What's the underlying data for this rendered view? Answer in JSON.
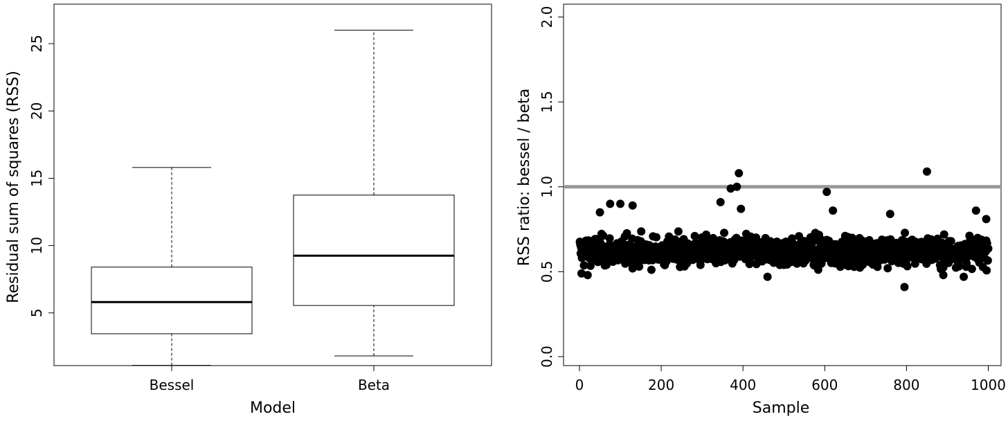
{
  "chart_data": [
    {
      "type": "boxplot",
      "title": "",
      "xlabel": "Model",
      "ylabel": "Residual sum of squares (RSS)",
      "categories": [
        "Bessel",
        "Beta"
      ],
      "yticks": [
        5,
        10,
        15,
        20,
        25
      ],
      "ylim": [
        1.0,
        26.0
      ],
      "grid": false,
      "boxes": [
        {
          "name": "Bessel",
          "whisker_low": 1.1,
          "q1": 3.45,
          "median": 5.8,
          "q3": 8.4,
          "whisker_high": 15.8
        },
        {
          "name": "Beta",
          "whisker_low": 1.8,
          "q1": 5.55,
          "median": 9.25,
          "q3": 13.75,
          "whisker_high": 26.0
        }
      ]
    },
    {
      "type": "scatter",
      "title": "",
      "xlabel": "Sample",
      "ylabel": "RSS ratio:  bessel / beta",
      "xticks": [
        0,
        200,
        400,
        600,
        800,
        1000
      ],
      "yticks": [
        0.0,
        0.5,
        1.0,
        1.5,
        2.0
      ],
      "ytick_labels": [
        "0.0",
        "0.5",
        "1.0",
        "1.5",
        "2.0"
      ],
      "xlim": [
        0,
        1000
      ],
      "ylim": [
        0.0,
        2.0
      ],
      "grid": false,
      "reference_line": {
        "y": 1.0,
        "color": "#999999"
      },
      "n_points": 1000,
      "typical_range": [
        0.5,
        0.8
      ],
      "points_highlighted": [
        {
          "x": 5,
          "y": 0.49
        },
        {
          "x": 20,
          "y": 0.48
        },
        {
          "x": 50,
          "y": 0.85
        },
        {
          "x": 75,
          "y": 0.9
        },
        {
          "x": 100,
          "y": 0.9
        },
        {
          "x": 130,
          "y": 0.89
        },
        {
          "x": 345,
          "y": 0.91
        },
        {
          "x": 370,
          "y": 0.99
        },
        {
          "x": 385,
          "y": 1.0
        },
        {
          "x": 390,
          "y": 1.08
        },
        {
          "x": 395,
          "y": 0.87
        },
        {
          "x": 460,
          "y": 0.47
        },
        {
          "x": 605,
          "y": 0.97
        },
        {
          "x": 620,
          "y": 0.86
        },
        {
          "x": 760,
          "y": 0.84
        },
        {
          "x": 795,
          "y": 0.41
        },
        {
          "x": 850,
          "y": 1.09
        },
        {
          "x": 890,
          "y": 0.48
        },
        {
          "x": 940,
          "y": 0.47
        },
        {
          "x": 970,
          "y": 0.86
        },
        {
          "x": 995,
          "y": 0.81
        }
      ],
      "point_color": "#000000"
    }
  ]
}
